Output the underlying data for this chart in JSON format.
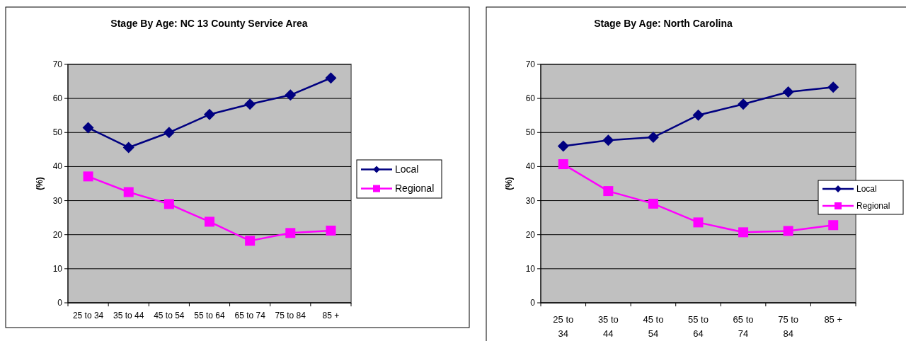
{
  "chart_data": [
    {
      "type": "line",
      "title": "Stage By Age: NC 13 County Service Area",
      "ylabel": "(%)",
      "categories": [
        "25 to 34",
        "35 to 44",
        "45 to 54",
        "55 to 64",
        "65 to 74",
        "75 to 84",
        "85 +"
      ],
      "series": [
        {
          "name": "Local",
          "color": "#000080",
          "marker": "diamond",
          "values": [
            51.4,
            45.6,
            50,
            55.3,
            58.3,
            61,
            66
          ]
        },
        {
          "name": "Regional",
          "color": "#ff00ff",
          "marker": "square",
          "values": [
            37.1,
            32.5,
            29,
            23.8,
            18.2,
            20.5,
            21.2
          ]
        }
      ],
      "ylim": [
        0,
        70
      ],
      "yticks": [
        0,
        10,
        20,
        30,
        40,
        50,
        60,
        70
      ],
      "grid": "y",
      "legend": "right"
    },
    {
      "type": "line",
      "title": "Stage By Age: North Carolina",
      "ylabel": "(%)",
      "categories": [
        "25 to 34",
        "35 to 44",
        "45 to 54",
        "55 to 64",
        "65 to 74",
        "75 to 84",
        "85 +"
      ],
      "series": [
        {
          "name": "Local",
          "color": "#000080",
          "marker": "diamond",
          "values": [
            46,
            47.7,
            48.6,
            55.1,
            58.3,
            61.9,
            63.3
          ]
        },
        {
          "name": "Regional",
          "color": "#ff00ff",
          "marker": "square",
          "values": [
            40.7,
            32.8,
            29.1,
            23.6,
            20.7,
            21.1,
            22.8
          ]
        }
      ],
      "ylim": [
        0,
        70
      ],
      "yticks": [
        0,
        10,
        20,
        30,
        40,
        50,
        60,
        70
      ],
      "grid": "y",
      "legend": "right"
    }
  ]
}
